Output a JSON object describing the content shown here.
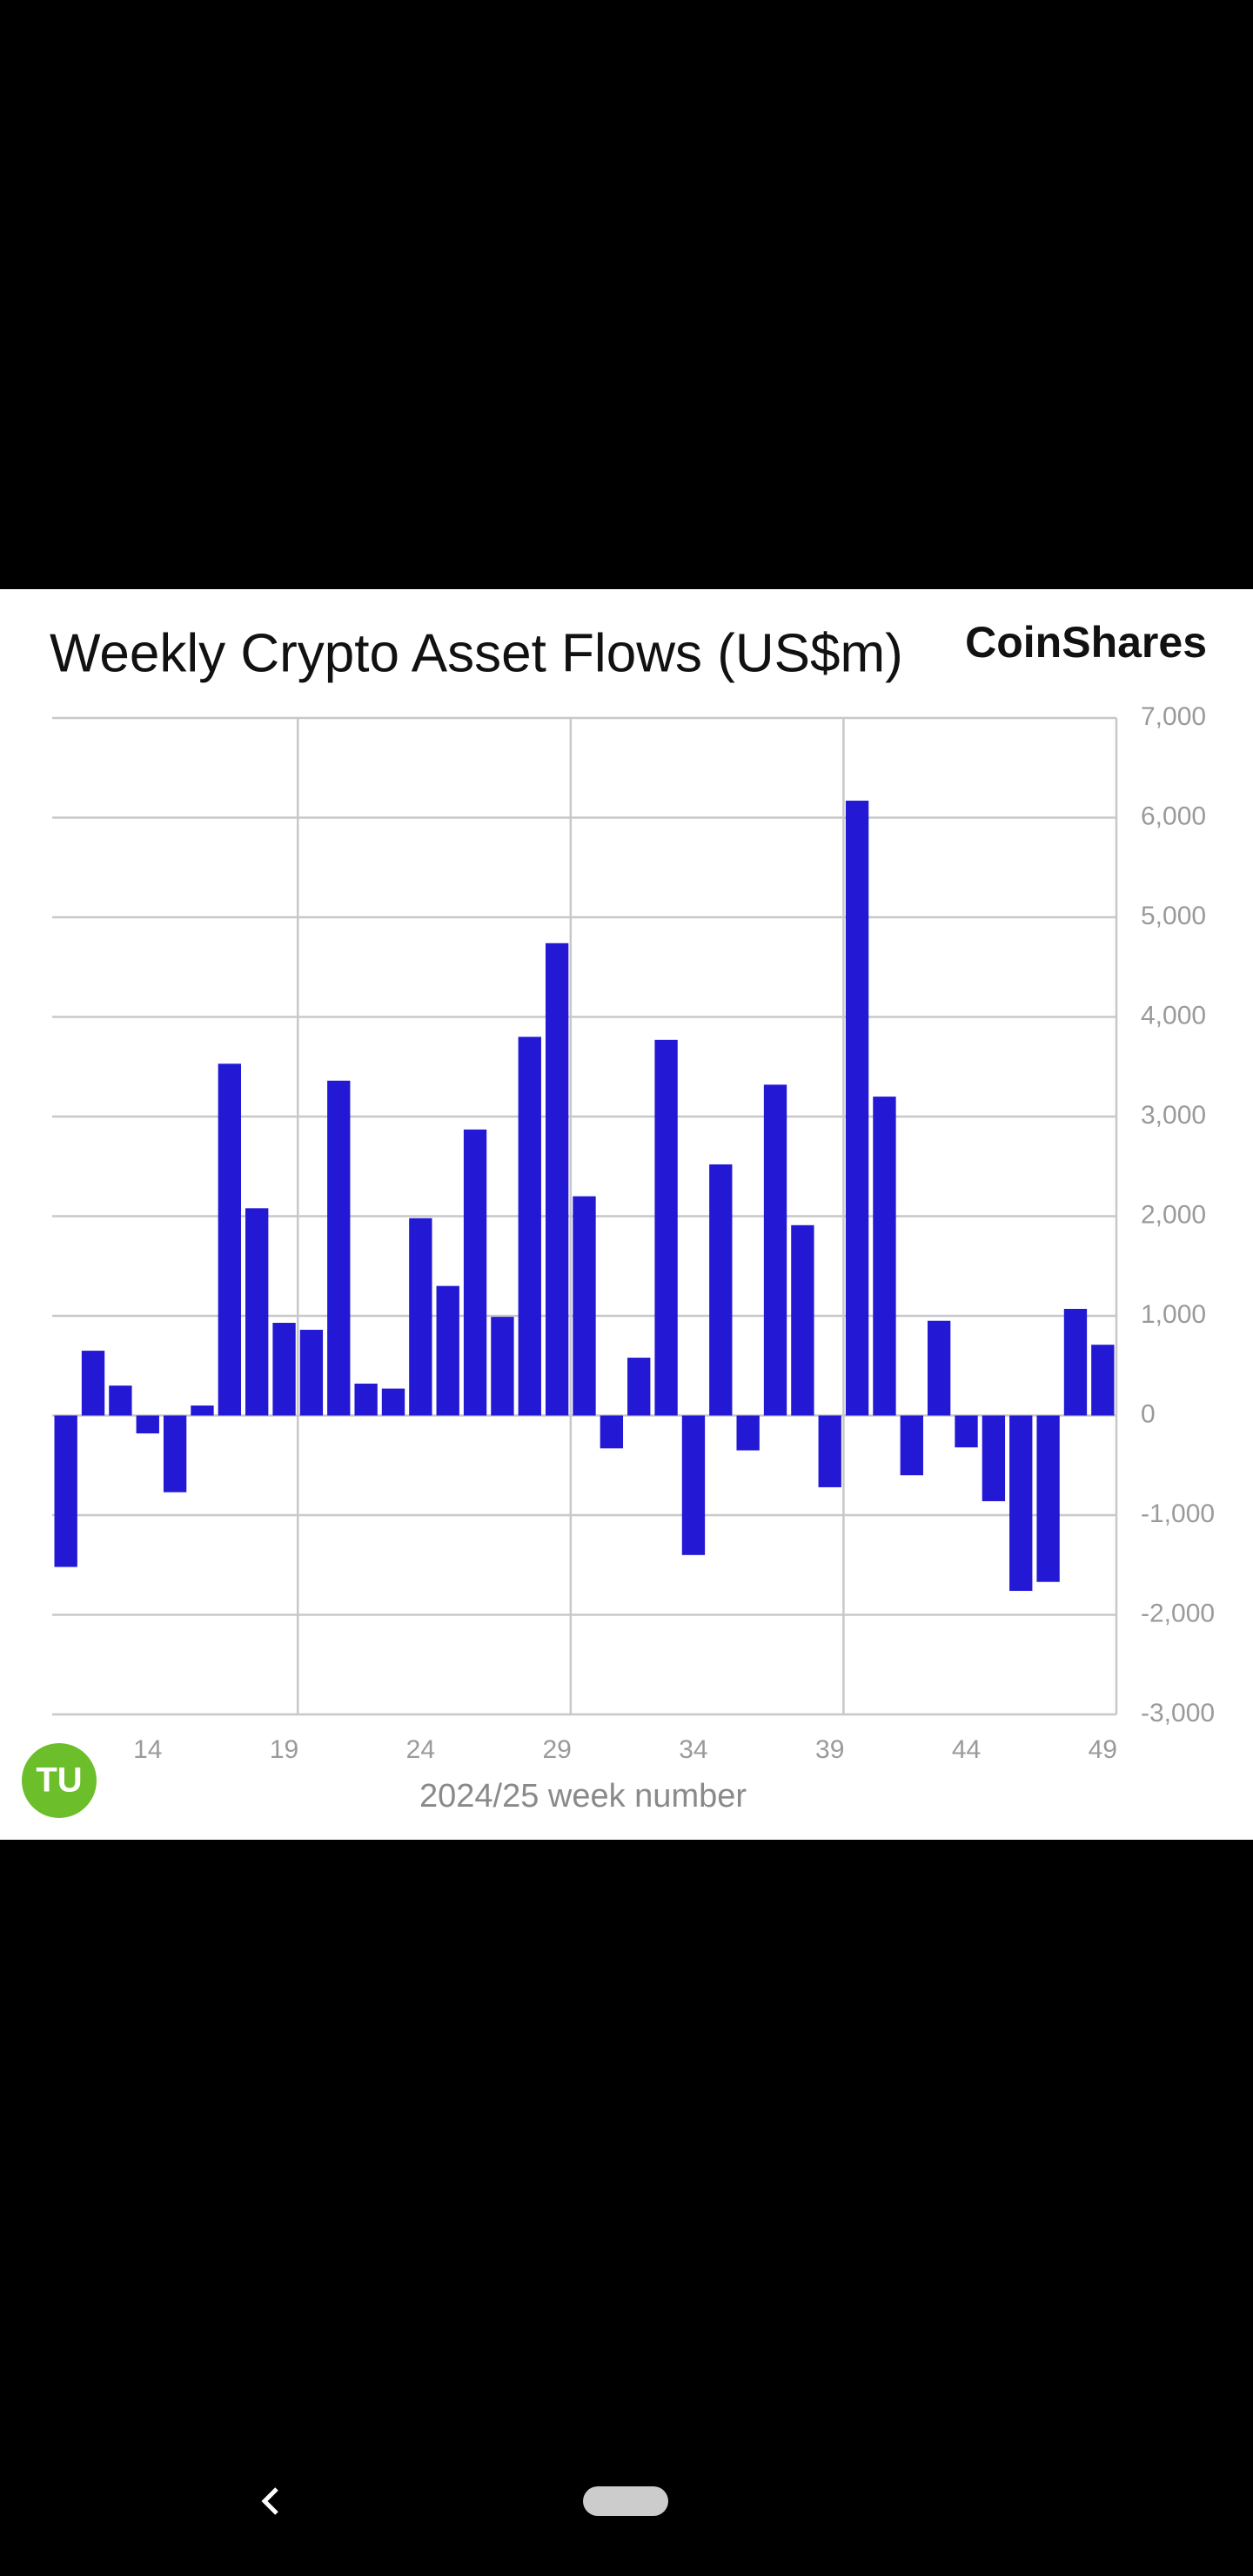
{
  "chart_data": {
    "type": "bar",
    "title": "Weekly Crypto Asset Flows (US$m)",
    "brand": "CoinShares",
    "x_label": "2024/25 week number",
    "categories": [
      null,
      null,
      null,
      "14",
      null,
      null,
      null,
      null,
      "19",
      null,
      null,
      null,
      null,
      "24",
      null,
      null,
      null,
      null,
      "29",
      null,
      null,
      null,
      null,
      "34",
      null,
      null,
      null,
      null,
      "39",
      null,
      null,
      null,
      null,
      "44",
      null,
      null,
      null,
      null,
      "49"
    ],
    "values": [
      -1520,
      650,
      300,
      -180,
      -770,
      100,
      3530,
      2080,
      930,
      860,
      3360,
      320,
      270,
      1980,
      1300,
      2870,
      990,
      3800,
      4740,
      2200,
      -330,
      580,
      3770,
      -1400,
      2520,
      -350,
      3320,
      1910,
      -720,
      6170,
      3200,
      -600,
      950,
      -320,
      -860,
      -1760,
      -1670,
      1070,
      710
    ],
    "color": "#2318d3",
    "ylim": [
      -3000,
      7000
    ],
    "yticks": [
      {
        "value": -3000,
        "label": "-3,000"
      },
      {
        "value": -2000,
        "label": "-2,000"
      },
      {
        "value": -1000,
        "label": "-1,000"
      },
      0,
      {
        "value": 1000,
        "label": "1,000"
      },
      {
        "value": 2000,
        "label": "2,000"
      },
      {
        "value": 3000,
        "label": "3,000"
      },
      {
        "value": 4000,
        "label": "4,000"
      },
      {
        "value": 5000,
        "label": "5,000"
      },
      {
        "value": 6000,
        "label": "6,000"
      },
      {
        "value": 7000,
        "label": "7,000"
      }
    ],
    "grid": true,
    "y_axis_side": "right"
  },
  "logo": "TU"
}
